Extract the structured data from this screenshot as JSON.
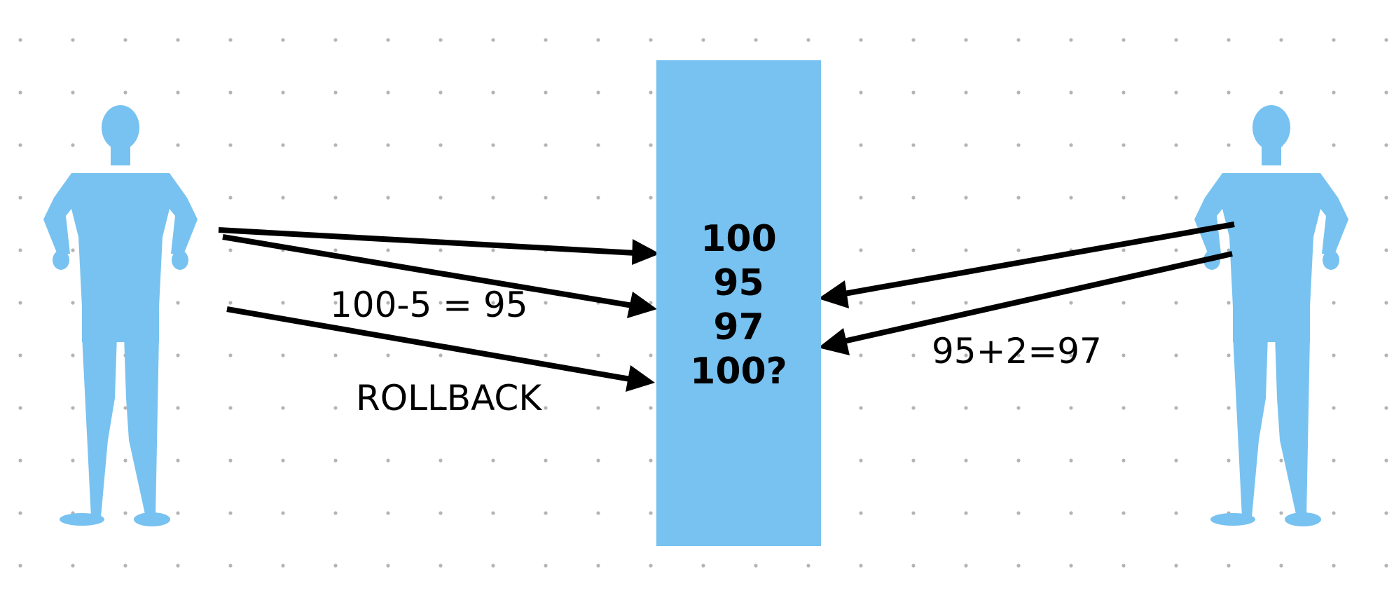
{
  "colors": {
    "background": "#ffffff",
    "accent_blue": "#77c2f0",
    "grid_dot": "#b4b4b4",
    "arrow": "#000000"
  },
  "center_box": {
    "values": [
      "100",
      "95",
      "97",
      "100?"
    ]
  },
  "labels": {
    "left_operation": "100-5 = 95",
    "rollback": "ROLLBACK",
    "right_operation": "95+2=97"
  },
  "icons": {
    "left_figure": "person-silhouette-icon",
    "right_figure": "person-silhouette-icon"
  }
}
